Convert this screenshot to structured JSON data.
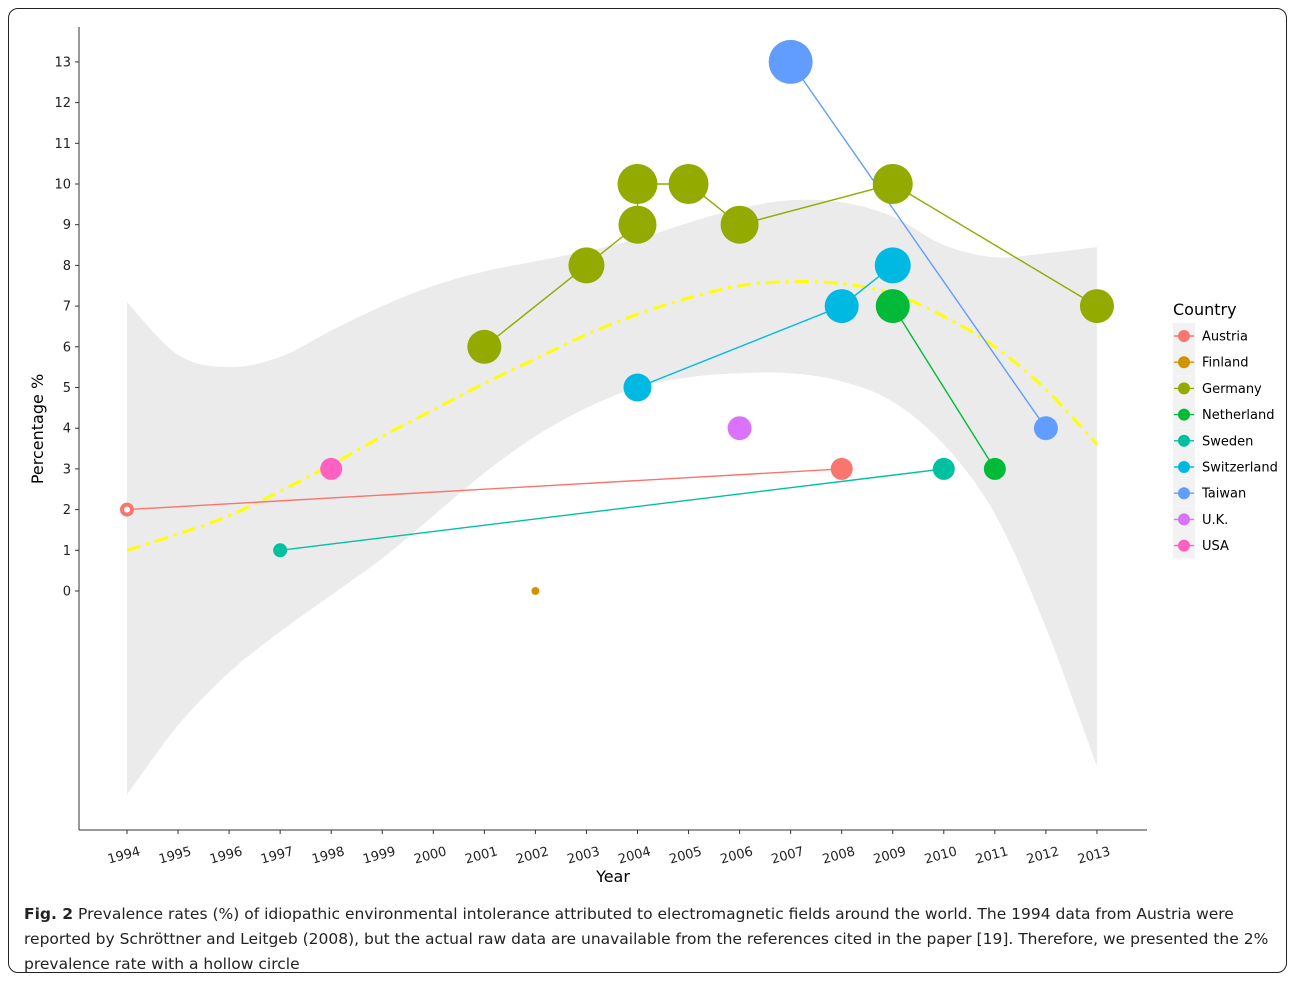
{
  "chart_data": {
    "type": "scatter",
    "title": "",
    "xlabel": "Year",
    "ylabel": "Percentage %",
    "xlim": [
      1993.0,
      2013.95
    ],
    "ylim": [
      -5.9,
      14.0
    ],
    "x_ticks": [
      "1994",
      "1995",
      "1996",
      "1997",
      "1998",
      "1999",
      "2000",
      "2001",
      "2002",
      "2003",
      "2004",
      "2005",
      "2006",
      "2007",
      "2008",
      "2009",
      "2010",
      "2011",
      "2012",
      "2013"
    ],
    "y_ticks": [
      "0",
      "1",
      "2",
      "3",
      "4",
      "5",
      "6",
      "7",
      "8",
      "9",
      "10",
      "11",
      "12",
      "13"
    ],
    "grid": false,
    "legend": {
      "title": "Country",
      "position": "right"
    },
    "series": [
      {
        "name": "Austria",
        "color": "#F8766D",
        "connected": true,
        "points": [
          {
            "x": 1994,
            "y": 2,
            "size": 7,
            "hollow": true
          },
          {
            "x": 2008,
            "y": 3,
            "size": 11
          }
        ]
      },
      {
        "name": "Finland",
        "color": "#D39200",
        "connected": false,
        "points": [
          {
            "x": 2002,
            "y": 0,
            "size": 4
          }
        ]
      },
      {
        "name": "Germany",
        "color": "#93AA00",
        "connected": true,
        "points": [
          {
            "x": 2001,
            "y": 6,
            "size": 17
          },
          {
            "x": 2003,
            "y": 8,
            "size": 18
          },
          {
            "x": 2004,
            "y": 9,
            "size": 19
          },
          {
            "x": 2004,
            "y": 10,
            "size": 20
          },
          {
            "x": 2005,
            "y": 10,
            "size": 20
          },
          {
            "x": 2006,
            "y": 9,
            "size": 19
          },
          {
            "x": 2009,
            "y": 10,
            "size": 20
          },
          {
            "x": 2013,
            "y": 7,
            "size": 17
          }
        ]
      },
      {
        "name": "Netherland",
        "color": "#00BA38",
        "connected": true,
        "points": [
          {
            "x": 2009,
            "y": 7,
            "size": 17
          },
          {
            "x": 2011,
            "y": 3,
            "size": 11
          }
        ]
      },
      {
        "name": "Sweden",
        "color": "#00C19F",
        "connected": true,
        "points": [
          {
            "x": 1997,
            "y": 1,
            "size": 7
          },
          {
            "x": 2010,
            "y": 3,
            "size": 11
          }
        ]
      },
      {
        "name": "Switzerland",
        "color": "#00B9E3",
        "connected": true,
        "points": [
          {
            "x": 2004,
            "y": 5,
            "size": 14
          },
          {
            "x": 2008,
            "y": 7,
            "size": 17
          },
          {
            "x": 2009,
            "y": 8,
            "size": 18
          }
        ]
      },
      {
        "name": "Taiwan",
        "color": "#619CFF",
        "connected": true,
        "points": [
          {
            "x": 2007,
            "y": 13,
            "size": 22
          },
          {
            "x": 2012,
            "y": 4,
            "size": 12
          }
        ]
      },
      {
        "name": "U.K.",
        "color": "#DB72FB",
        "connected": false,
        "points": [
          {
            "x": 2006,
            "y": 4,
            "size": 12
          }
        ]
      },
      {
        "name": "USA",
        "color": "#FF61C3",
        "connected": false,
        "points": [
          {
            "x": 1998,
            "y": 3,
            "size": 11
          }
        ]
      }
    ],
    "smooth_trend": {
      "color": "#FFFF00",
      "style": "dashdot",
      "x": [
        1994,
        1995,
        1996,
        1997,
        1998,
        1999,
        2000,
        2001,
        2002,
        2003,
        2004,
        2005,
        2006,
        2007,
        2008,
        2009,
        2010,
        2011,
        2012,
        2013
      ],
      "y": [
        1.0,
        1.4,
        1.85,
        2.45,
        3.1,
        3.8,
        4.45,
        5.1,
        5.7,
        6.3,
        6.8,
        7.2,
        7.5,
        7.6,
        7.55,
        7.3,
        6.75,
        6.0,
        4.95,
        3.6
      ],
      "ci_lower": [
        -5.0,
        -3.3,
        -2.0,
        -1.0,
        -0.1,
        0.8,
        1.85,
        2.9,
        3.8,
        4.5,
        5.0,
        5.25,
        5.35,
        5.35,
        5.15,
        4.65,
        3.6,
        1.9,
        -0.9,
        -4.3
      ],
      "ci_upper": [
        7.1,
        5.8,
        5.5,
        5.75,
        6.4,
        7.0,
        7.5,
        7.85,
        8.1,
        8.35,
        8.65,
        9.05,
        9.4,
        9.6,
        9.55,
        9.2,
        8.5,
        8.2,
        8.3,
        8.45
      ],
      "ci_color": "#EBEBEB"
    }
  },
  "caption": {
    "label": "Fig. 2",
    "text": " Prevalence rates (%) of idiopathic environmental intolerance attributed to electromagnetic fields around the world. The 1994 data from Austria were reported by Schröttner and Leitgeb (2008), but the actual raw data are unavailable from the references cited in the paper [19]. Therefore, we presented the 2% prevalence rate with a hollow circle"
  }
}
